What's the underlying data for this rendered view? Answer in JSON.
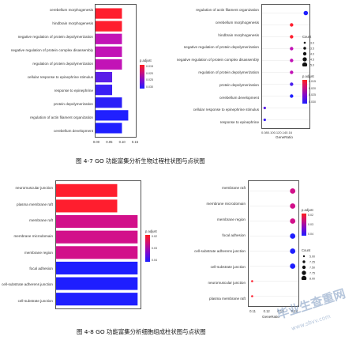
{
  "figure_1": {
    "caption": "图 4-7 GO 功能富集分析生物过程柱状图与点状图",
    "bar_chart": {
      "terms": [
        "cerebellum morphogenesis",
        "hindbrain morphogenesis",
        "negative regulation of protein depolymerization",
        "negative regulation of protein complex disassembly",
        "regulation of protein depolymerization",
        "cellular response to epinephrine stimulus",
        "response to epinephrine",
        "protein depolymerization",
        "regulation of actin filament organization",
        "cerebellum development"
      ],
      "x_ticks": [
        "0.00",
        "0.05",
        "0.10",
        "0.15"
      ],
      "legend_title": "p.adjust",
      "legend_ticks": [
        "0.015",
        "0.020",
        "0.025",
        "0.030"
      ]
    },
    "dot_chart": {
      "terms": [
        "regulation of actin filament organization",
        "cerebellum morphogenesis",
        "hindbrain morphogenesis",
        "negative regulation of protein depolymerization",
        "negative regulation of protein complex disassembly",
        "regulation of protein depolymerization",
        "protein depolymerization",
        "cerebellum development",
        "cellular response to epinephrine stimulus",
        "response to epinephrine"
      ],
      "x_ticks": "0.080.100.120.140.16",
      "x_title": "GeneRatio",
      "count_title": "Count",
      "count_ticks": [
        "3.0",
        "3.5",
        "4.0",
        "4.5",
        "5.0"
      ],
      "legend_title": "p.adjust",
      "legend_ticks": [
        "0.015",
        "0.020",
        "0.025",
        "0.030"
      ]
    }
  },
  "figure_2": {
    "caption": "图 4-8 GO 功能富集分析细胞组成柱状图与点状图",
    "bar_chart": {
      "terms": [
        "neuromuscular junction",
        "plasma membrane raft",
        "membrane raft",
        "membrane microdomain",
        "membrane region",
        "focal adhesion",
        "cell-substrate adherens junction",
        "cell-substrate junction"
      ],
      "x_ticks": [
        "0.0",
        "2.5",
        "5.0",
        "7.5",
        "10.0",
        "12.5"
      ],
      "legend_title": "p.adjust",
      "legend_ticks": [
        "0.02",
        "0.03",
        "0.04"
      ]
    },
    "dot_chart": {
      "terms": [
        "membrane raft",
        "membrane microdomain",
        "membrane region",
        "focal adhesion",
        "cell-substrate adherens junction",
        "cell-substrate junction",
        "neuromuscular junction",
        "plasma membrane raft"
      ],
      "x_ticks": [
        "0.11",
        "0.12",
        "0.13",
        "0.14"
      ],
      "x_title": "GeneRatio",
      "count_title": "Count",
      "count_ticks": [
        "5.00",
        "7.25",
        "7.50",
        "7.75",
        "8.00"
      ],
      "legend_title": "p.adjust",
      "legend_ticks": [
        "0.02",
        "0.03",
        "0.04"
      ]
    }
  },
  "watermark": {
    "line1": "毕业生查重网",
    "line2": "www.sbvv.com"
  },
  "chart_data": [
    {
      "type": "bar",
      "orientation": "horizontal",
      "categories": [
        "cerebellum morphogenesis",
        "hindbrain morphogenesis",
        "negative regulation of protein depolymerization",
        "negative regulation of protein complex disassembly",
        "regulation of protein depolymerization",
        "cellular response to epinephrine stimulus",
        "response to epinephrine",
        "protein depolymerization",
        "regulation of actin filament organization",
        "cerebellum development"
      ],
      "values": [
        0.105,
        0.105,
        0.105,
        0.105,
        0.105,
        0.066,
        0.066,
        0.105,
        0.13,
        0.105
      ],
      "colors": [
        "#ff1e2e",
        "#ff1e2e",
        "#c213b6",
        "#c213b6",
        "#c213b6",
        "#5a1ee8",
        "#3a1ef5",
        "#2a1ef8",
        "#2020ff",
        "#1e1eff"
      ],
      "xlim": [
        0,
        0.16
      ],
      "legend": "top-right"
    },
    {
      "type": "scatter",
      "categories": [
        "regulation of actin filament organization",
        "cerebellum morphogenesis",
        "hindbrain morphogenesis",
        "negative regulation of protein depolymerization",
        "negative regulation of protein complex disassembly",
        "regulation of protein depolymerization",
        "protein depolymerization",
        "cerebellum development",
        "cellular response to epinephrine stimulus",
        "response to epinephrine"
      ],
      "x": [
        0.158,
        0.131,
        0.131,
        0.131,
        0.131,
        0.131,
        0.131,
        0.131,
        0.08,
        0.08
      ],
      "count": [
        5,
        4,
        4,
        4,
        4,
        4,
        4,
        4,
        3,
        3
      ],
      "colors": [
        "#2020ff",
        "#ff1e2e",
        "#ff1e2e",
        "#c213b6",
        "#c213b6",
        "#c213b6",
        "#4a20ee",
        "#1e1eff",
        "#5a1ee8",
        "#3a1ef5"
      ],
      "xlim": [
        0.075,
        0.165
      ],
      "legend": "right"
    },
    {
      "type": "bar",
      "orientation": "horizontal",
      "categories": [
        "neuromuscular junction",
        "plasma membrane raft",
        "membrane raft",
        "membrane microdomain",
        "membrane region",
        "focal adhesion",
        "cell-substrate adherens junction",
        "cell-substrate junction"
      ],
      "values": [
        10.5,
        10.5,
        14,
        14,
        14,
        14,
        14,
        14
      ],
      "colors": [
        "#ff1e2e",
        "#ff1e2e",
        "#d2108a",
        "#d2108a",
        "#d2108a",
        "#1e1eff",
        "#1e1eff",
        "#1e1eff"
      ],
      "xlim": [
        0,
        14.5
      ],
      "legend": "top-right"
    },
    {
      "type": "scatter",
      "categories": [
        "membrane raft",
        "membrane microdomain",
        "membrane region",
        "focal adhesion",
        "cell-substrate adherens junction",
        "cell-substrate junction",
        "neuromuscular junction",
        "plasma membrane raft"
      ],
      "x": [
        0.143,
        0.143,
        0.143,
        0.143,
        0.143,
        0.143,
        0.108,
        0.108
      ],
      "count": [
        8,
        8,
        8,
        8,
        8,
        8,
        5,
        5
      ],
      "colors": [
        "#d2108a",
        "#d2108a",
        "#d2108a",
        "#1e1eff",
        "#1e1eff",
        "#1e1eff",
        "#ff1e2e",
        "#ff1e2e"
      ],
      "xlim": [
        0.105,
        0.148
      ],
      "legend": "right"
    }
  ]
}
